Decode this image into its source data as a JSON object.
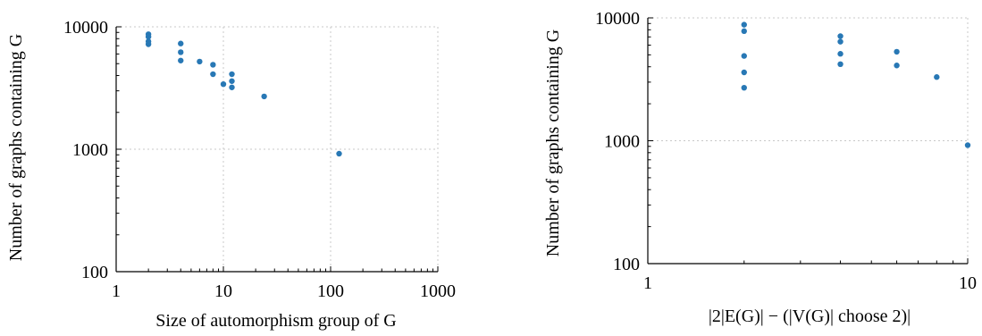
{
  "chart_data": [
    {
      "type": "scatter",
      "xscale": "log",
      "yscale": "log",
      "xlim": [
        1,
        1000
      ],
      "ylim": [
        100,
        10000
      ],
      "xticks": [
        1,
        10,
        100,
        1000
      ],
      "xtick_labels": [
        "1",
        "10",
        "100",
        "1000"
      ],
      "yticks": [
        100,
        1000,
        10000
      ],
      "ytick_labels": [
        "100",
        "1000",
        "10000"
      ],
      "xlabel": "Size of automorphism group of G",
      "ylabel": "Number of graphs containing G",
      "grid": true,
      "color": "#2878b5",
      "points": [
        {
          "x": 2,
          "y": 8700
        },
        {
          "x": 2,
          "y": 8300
        },
        {
          "x": 2,
          "y": 7600
        },
        {
          "x": 2,
          "y": 7200
        },
        {
          "x": 4,
          "y": 7300
        },
        {
          "x": 4,
          "y": 6200
        },
        {
          "x": 4,
          "y": 5300
        },
        {
          "x": 6,
          "y": 5200
        },
        {
          "x": 8,
          "y": 4900
        },
        {
          "x": 8,
          "y": 4100
        },
        {
          "x": 10,
          "y": 3400
        },
        {
          "x": 12,
          "y": 4100
        },
        {
          "x": 12,
          "y": 3600
        },
        {
          "x": 12,
          "y": 3200
        },
        {
          "x": 24,
          "y": 2700
        },
        {
          "x": 120,
          "y": 920
        }
      ]
    },
    {
      "type": "scatter",
      "xscale": "log",
      "yscale": "log",
      "xlim": [
        1,
        10
      ],
      "ylim": [
        100,
        10000
      ],
      "xticks": [
        1,
        10
      ],
      "xtick_labels": [
        "1",
        "10"
      ],
      "yticks": [
        100,
        1000,
        10000
      ],
      "ytick_labels": [
        "100",
        "1000",
        "10000"
      ],
      "xlabel": "|2|E(G)| − (|V(G)| choose 2)|",
      "ylabel": "Number of graphs containing G",
      "grid": true,
      "color": "#2878b5",
      "points": [
        {
          "x": 2,
          "y": 8800
        },
        {
          "x": 2,
          "y": 7800
        },
        {
          "x": 2,
          "y": 4900
        },
        {
          "x": 2,
          "y": 3600
        },
        {
          "x": 2,
          "y": 2700
        },
        {
          "x": 4,
          "y": 7100
        },
        {
          "x": 4,
          "y": 6400
        },
        {
          "x": 4,
          "y": 5100
        },
        {
          "x": 4,
          "y": 4200
        },
        {
          "x": 6,
          "y": 5300
        },
        {
          "x": 6,
          "y": 4100
        },
        {
          "x": 8,
          "y": 3300
        },
        {
          "x": 10,
          "y": 920
        }
      ]
    }
  ]
}
